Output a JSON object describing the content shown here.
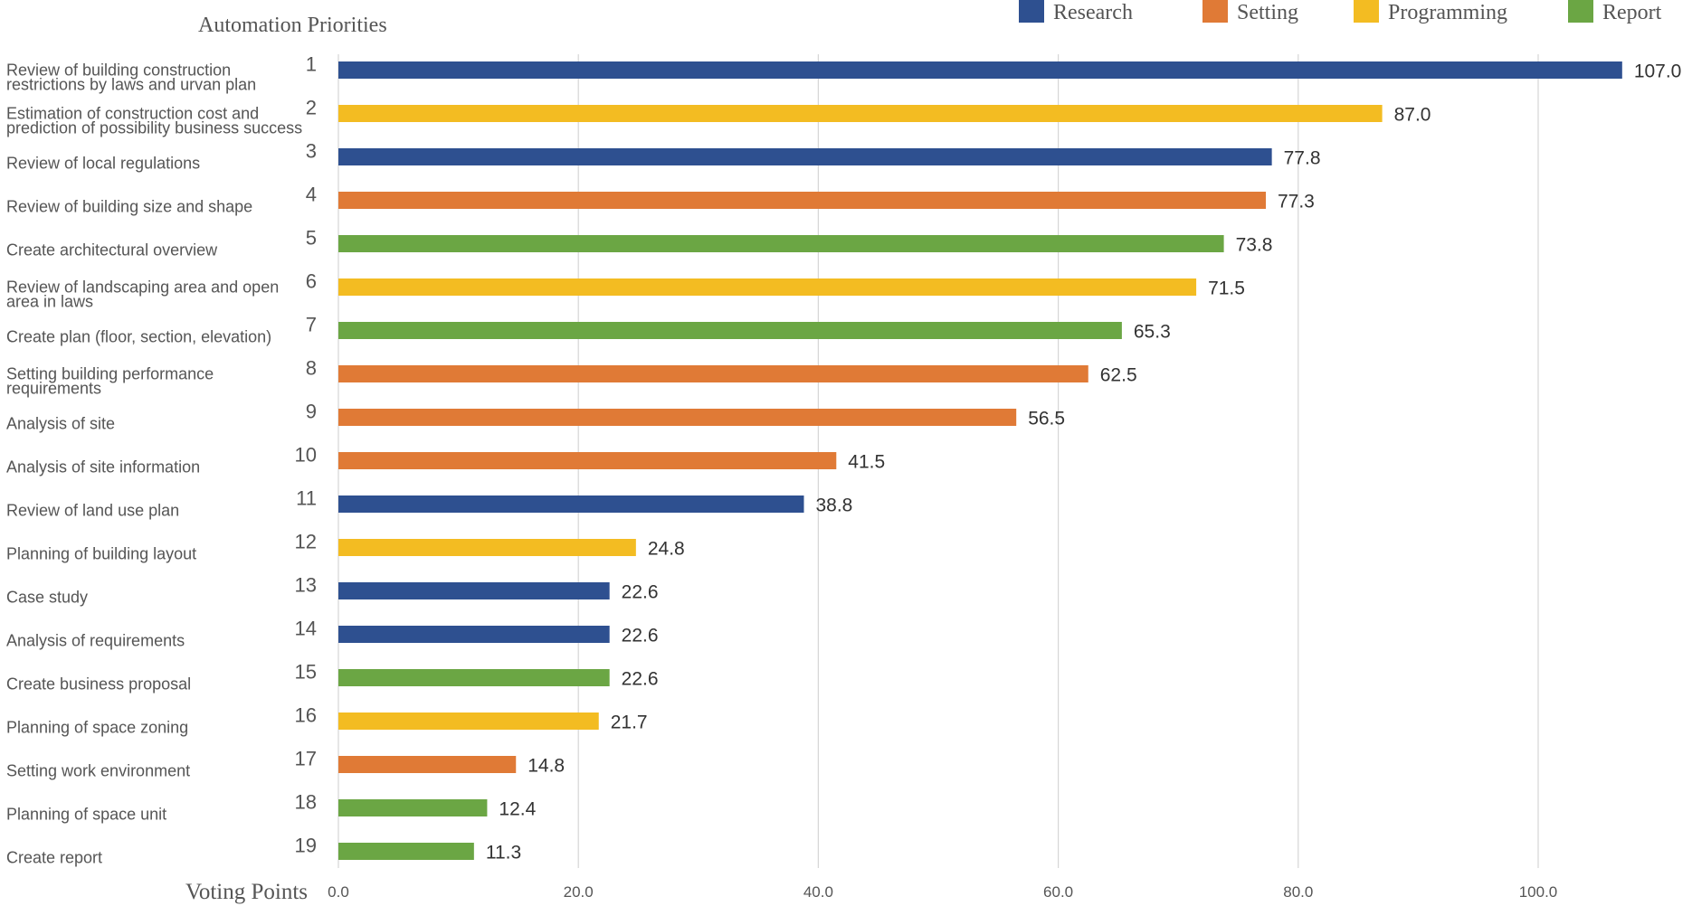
{
  "chart_data": {
    "type": "bar",
    "orientation": "horizontal",
    "title": "Automation Priorities",
    "xlabel": "Voting Points",
    "xlim": [
      0,
      110
    ],
    "xticks": [
      0,
      20,
      40,
      60,
      80,
      100
    ],
    "xtick_labels": [
      "0.0",
      "20.0",
      "40.0",
      "60.0",
      "80.0",
      "100.0"
    ],
    "grid": "vertical",
    "legend_position": "top-right",
    "legend": [
      {
        "name": "Research",
        "color": "#2e5090"
      },
      {
        "name": "Setting",
        "color": "#e07a36"
      },
      {
        "name": "Programming",
        "color": "#f3bc22"
      },
      {
        "name": "Report",
        "color": "#6ba644"
      }
    ],
    "items": [
      {
        "rank": "1",
        "label": [
          "Review of building construction",
          "restrictions by laws and urvan plan"
        ],
        "value": 107.0,
        "value_label": "107.0",
        "group": "Research"
      },
      {
        "rank": "2",
        "label": [
          "Estimation of construction cost and",
          "prediction of possibility business success"
        ],
        "value": 87.0,
        "value_label": "87.0",
        "group": "Programming"
      },
      {
        "rank": "3",
        "label": [
          "Review of local regulations"
        ],
        "value": 77.8,
        "value_label": "77.8",
        "group": "Research"
      },
      {
        "rank": "4",
        "label": [
          "Review of building size and shape"
        ],
        "value": 77.3,
        "value_label": "77.3",
        "group": "Setting"
      },
      {
        "rank": "5",
        "label": [
          "Create architectural overview"
        ],
        "value": 73.8,
        "value_label": "73.8",
        "group": "Report"
      },
      {
        "rank": "6",
        "label": [
          "Review of landscaping area and open",
          "area in laws"
        ],
        "value": 71.5,
        "value_label": "71.5",
        "group": "Programming"
      },
      {
        "rank": "7",
        "label": [
          "Create plan (floor, section, elevation)"
        ],
        "value": 65.3,
        "value_label": "65.3",
        "group": "Report"
      },
      {
        "rank": "8",
        "label": [
          "Setting building performance",
          "requirements"
        ],
        "value": 62.5,
        "value_label": "62.5",
        "group": "Setting"
      },
      {
        "rank": "9",
        "label": [
          "Analysis of site"
        ],
        "value": 56.5,
        "value_label": "56.5",
        "group": "Setting"
      },
      {
        "rank": "10",
        "label": [
          "Analysis of site information"
        ],
        "value": 41.5,
        "value_label": "41.5",
        "group": "Setting"
      },
      {
        "rank": "11",
        "label": [
          "Review of land use plan"
        ],
        "value": 38.8,
        "value_label": "38.8",
        "group": "Research"
      },
      {
        "rank": "12",
        "label": [
          "Planning of building layout"
        ],
        "value": 24.8,
        "value_label": "24.8",
        "group": "Programming"
      },
      {
        "rank": "13",
        "label": [
          "Case study"
        ],
        "value": 22.6,
        "value_label": "22.6",
        "group": "Research"
      },
      {
        "rank": "14",
        "label": [
          "Analysis of requirements"
        ],
        "value": 22.6,
        "value_label": "22.6",
        "group": "Research"
      },
      {
        "rank": "15",
        "label": [
          "Create business proposal"
        ],
        "value": 22.6,
        "value_label": "22.6",
        "group": "Report"
      },
      {
        "rank": "16",
        "label": [
          "Planning of space zoning"
        ],
        "value": 21.7,
        "value_label": "21.7",
        "group": "Programming"
      },
      {
        "rank": "17",
        "label": [
          "Setting work environment"
        ],
        "value": 14.8,
        "value_label": "14.8",
        "group": "Setting"
      },
      {
        "rank": "18",
        "label": [
          "Planning of space unit"
        ],
        "value": 12.4,
        "value_label": "12.4",
        "group": "Report"
      },
      {
        "rank": "19",
        "label": [
          "Create report"
        ],
        "value": 11.3,
        "value_label": "11.3",
        "group": "Report"
      }
    ]
  }
}
